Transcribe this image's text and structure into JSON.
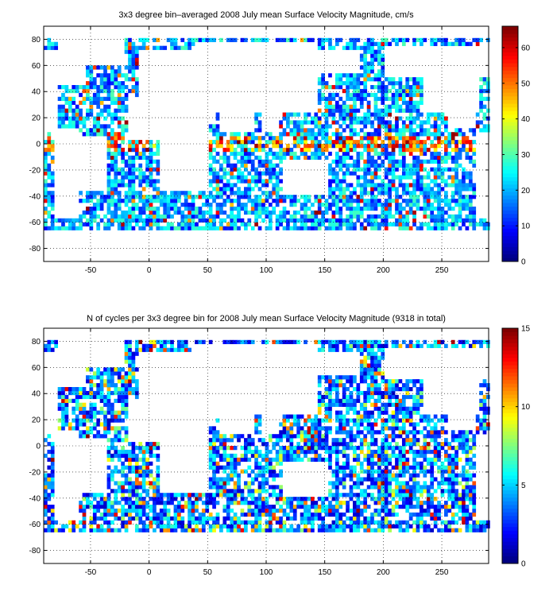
{
  "chart_data": [
    {
      "type": "heatmap",
      "title": "3x3 degree bin–averaged 2008 July mean Surface Velocity Magnitude, cm/s",
      "xlabel": "",
      "ylabel": "",
      "xlim": [
        -90,
        290
      ],
      "ylim": [
        -90,
        90
      ],
      "x_ticks": [
        -50,
        0,
        50,
        100,
        150,
        200,
        250
      ],
      "y_ticks": [
        -80,
        -60,
        -40,
        -20,
        0,
        20,
        40,
        60,
        80
      ],
      "grid": true,
      "colorbar": {
        "min": 0,
        "max": 66,
        "ticks": [
          0,
          10,
          20,
          30,
          40,
          50,
          60
        ],
        "colormap": "jet"
      },
      "bin_size_deg": 3,
      "cells_note": "dense scatter of 3x3 degree bins over ocean, mostly 10-30 cm/s with high values (>50) near equator and western boundary currents"
    },
    {
      "type": "heatmap",
      "title": "N of cycles per 3x3 degree bin for 2008 July mean Surface Velocity Magnitude (9318 in total)",
      "xlabel": "",
      "ylabel": "",
      "xlim": [
        -90,
        290
      ],
      "ylim": [
        -90,
        90
      ],
      "x_ticks": [
        -50,
        0,
        50,
        100,
        150,
        200,
        250
      ],
      "y_ticks": [
        -80,
        -60,
        -40,
        -20,
        0,
        20,
        40,
        60,
        80
      ],
      "grid": true,
      "colorbar": {
        "min": 0,
        "max": 15,
        "ticks": [
          0,
          5,
          10,
          15
        ],
        "colormap": "jet"
      },
      "bin_size_deg": 3,
      "total_cycles": 9318
    }
  ]
}
